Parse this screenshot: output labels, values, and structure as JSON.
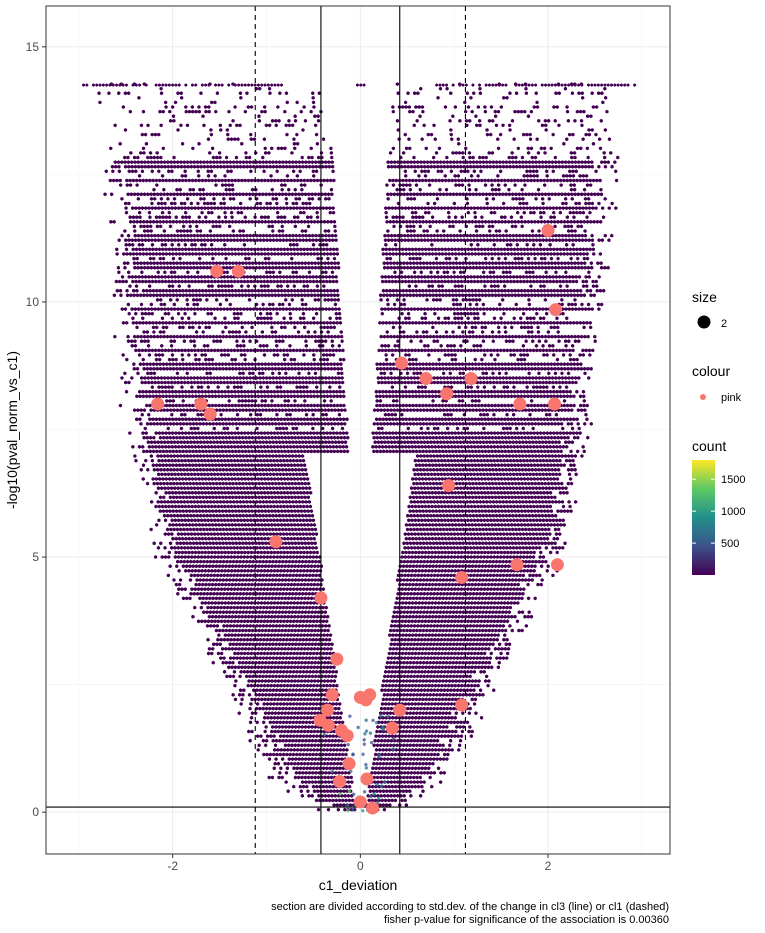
{
  "chart_data": {
    "type": "hexbin-scatter",
    "xlabel": "c1_deviation",
    "ylabel": "-log10(pval_norm_vs_c1)",
    "xlim": [
      -3.35,
      3.3
    ],
    "ylim": [
      -0.82,
      15.8
    ],
    "x_ticks": [
      -2,
      0,
      2
    ],
    "y_ticks": [
      0,
      5,
      10,
      15
    ],
    "x_tick_labels": [
      "-2",
      "0",
      "2"
    ],
    "y_tick_labels": [
      "0",
      "5",
      "10",
      "15"
    ],
    "grid": true,
    "colors": {
      "hex_fill": "#440154",
      "point": "#f8766d",
      "count_scale": [
        "#440154",
        "#3b528b",
        "#21908c",
        "#5dc963",
        "#fde725"
      ]
    },
    "solid_vlines": [
      -0.42,
      0.42
    ],
    "dashed_vlines": [
      -1.12,
      1.12
    ],
    "hline": 0.1,
    "points": [
      {
        "x": -1.53,
        "y": 10.6
      },
      {
        "x": -1.3,
        "y": 10.6
      },
      {
        "x": 2.0,
        "y": 11.4
      },
      {
        "x": 2.08,
        "y": 9.85
      },
      {
        "x": 0.44,
        "y": 8.8
      },
      {
        "x": 0.7,
        "y": 8.5
      },
      {
        "x": 1.18,
        "y": 8.5
      },
      {
        "x": 0.92,
        "y": 8.2
      },
      {
        "x": -2.16,
        "y": 8.0
      },
      {
        "x": -1.7,
        "y": 8.0
      },
      {
        "x": -1.6,
        "y": 7.8
      },
      {
        "x": 1.7,
        "y": 8.0
      },
      {
        "x": 2.07,
        "y": 8.0
      },
      {
        "x": 0.94,
        "y": 6.4
      },
      {
        "x": -0.9,
        "y": 5.3
      },
      {
        "x": 1.67,
        "y": 4.85
      },
      {
        "x": 2.1,
        "y": 4.85
      },
      {
        "x": 1.08,
        "y": 4.6
      },
      {
        "x": -0.42,
        "y": 4.2
      },
      {
        "x": -0.25,
        "y": 3.0
      },
      {
        "x": -0.3,
        "y": 2.3
      },
      {
        "x": -0.35,
        "y": 2.0
      },
      {
        "x": 0.0,
        "y": 2.25
      },
      {
        "x": 0.06,
        "y": 2.2
      },
      {
        "x": 0.1,
        "y": 2.3
      },
      {
        "x": 0.42,
        "y": 2.0
      },
      {
        "x": 1.08,
        "y": 2.1
      },
      {
        "x": -0.43,
        "y": 1.8
      },
      {
        "x": -0.34,
        "y": 1.7
      },
      {
        "x": -0.2,
        "y": 1.6
      },
      {
        "x": -0.14,
        "y": 1.5
      },
      {
        "x": 0.34,
        "y": 1.65
      },
      {
        "x": -0.12,
        "y": 0.95
      },
      {
        "x": 0.07,
        "y": 0.65
      },
      {
        "x": -0.22,
        "y": 0.6
      },
      {
        "x": 0.0,
        "y": 0.2
      },
      {
        "x": 0.13,
        "y": 0.08
      }
    ],
    "legend": {
      "size": {
        "title": "size",
        "label": "2"
      },
      "colour": {
        "title": "colour",
        "label": "pink"
      },
      "count": {
        "title": "count",
        "ticks": [
          500,
          1000,
          1500
        ],
        "tick_labels": [
          "500",
          "1000",
          "1500"
        ],
        "range": [
          1,
          1800
        ]
      }
    },
    "caption_lines": [
      "section are divided according to std.dev. of the change in cl3 (line) or cl1 (dashed)",
      "fisher p-value for significance of the association is 0.00360"
    ]
  }
}
